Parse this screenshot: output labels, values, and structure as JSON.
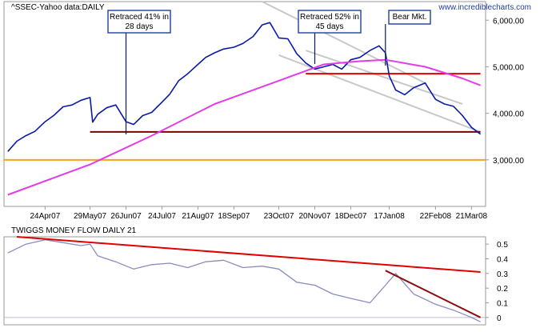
{
  "colors": {
    "price": "#0a1aa6",
    "ma": "#e23ce6",
    "support_dark": "#7a0000",
    "horizontal_red": "#e00000",
    "orange": "#f5a21a",
    "channel": "#c8c8c8",
    "mf_line": "#8a8cc0",
    "mf_trend_red": "#e00000",
    "mf_trend_dark": "#8a1010",
    "ann_border": "#1f3fa0"
  },
  "chart_data": [
    {
      "type": "line",
      "title": "^SSEC-Yahoo data:DAILY",
      "source_label": "www.incrediblecharts.com",
      "xlabel": "",
      "ylabel": "",
      "x_tick_labels": [
        "24Apr07",
        "29May07",
        "26Jun07",
        "24Jul07",
        "21Aug07",
        "18Sep07",
        "23Oct07",
        "20Nov07",
        "18Dec07",
        "17Jan08",
        "22Feb08",
        "21Mar08"
      ],
      "y_tick_labels": [
        "3,000.00",
        "4,000.00",
        "5,000.00",
        "6,000.00"
      ],
      "ylim": [
        2000,
        6400
      ],
      "grid": false,
      "series": [
        {
          "kind": "price",
          "x": [
            "2007-03-26",
            "2007-04-02",
            "2007-04-09",
            "2007-04-16",
            "2007-04-24",
            "2007-05-01",
            "2007-05-08",
            "2007-05-15",
            "2007-05-22",
            "2007-05-29",
            "2007-05-31",
            "2007-06-04",
            "2007-06-11",
            "2007-06-18",
            "2007-06-26",
            "2007-07-02",
            "2007-07-09",
            "2007-07-16",
            "2007-07-24",
            "2007-07-30",
            "2007-08-06",
            "2007-08-13",
            "2007-08-21",
            "2007-08-27",
            "2007-09-03",
            "2007-09-10",
            "2007-09-18",
            "2007-09-25",
            "2007-10-03",
            "2007-10-10",
            "2007-10-16",
            "2007-10-23",
            "2007-10-30",
            "2007-11-06",
            "2007-11-13",
            "2007-11-20",
            "2007-11-27",
            "2007-12-04",
            "2007-12-11",
            "2007-12-18",
            "2007-12-25",
            "2008-01-02",
            "2008-01-09",
            "2008-01-14",
            "2008-01-17",
            "2008-01-22",
            "2008-01-29",
            "2008-02-05",
            "2008-02-14",
            "2008-02-22",
            "2008-02-29",
            "2008-03-07",
            "2008-03-14",
            "2008-03-21",
            "2008-03-28"
          ],
          "values": [
            3180,
            3400,
            3520,
            3610,
            3820,
            3960,
            4140,
            4180,
            4280,
            4340,
            3810,
            3980,
            4120,
            4180,
            3820,
            3760,
            3950,
            4020,
            4240,
            4410,
            4700,
            4850,
            5050,
            5200,
            5300,
            5380,
            5420,
            5500,
            5650,
            5900,
            5950,
            5620,
            5600,
            5280,
            5080,
            4950,
            5000,
            5050,
            4950,
            5150,
            5200,
            5350,
            5450,
            5300,
            4800,
            4500,
            4400,
            4550,
            4650,
            4300,
            4200,
            4150,
            3950,
            3700,
            3550
          ]
        },
        {
          "kind": "moving-average",
          "x": [
            "2007-03-26",
            "2007-05-29",
            "2007-07-16",
            "2007-09-03",
            "2007-10-23",
            "2007-11-27",
            "2007-12-25",
            "2008-01-14",
            "2008-02-14",
            "2008-03-14",
            "2008-03-28"
          ],
          "values": [
            2250,
            2900,
            3520,
            4200,
            4700,
            5050,
            5120,
            5150,
            5000,
            4750,
            4600
          ]
        }
      ],
      "horizontal_lines": [
        {
          "name": "support",
          "value": 3600,
          "color_ref": "support_dark"
        },
        {
          "name": "resistance",
          "value": 4850,
          "color_ref": "horizontal_red"
        },
        {
          "name": "lower",
          "value": 3000,
          "color_ref": "orange"
        }
      ],
      "channel_lines": [
        {
          "from": [
            "2007-10-10",
            6400
          ],
          "to": [
            "2008-02-14",
            4650
          ]
        },
        {
          "from": [
            "2007-11-13",
            5350
          ],
          "to": [
            "2008-03-14",
            4200
          ]
        },
        {
          "from": [
            "2007-10-23",
            5250
          ],
          "to": [
            "2008-03-28",
            3600
          ]
        }
      ],
      "annotations": [
        {
          "lines": [
            "Retraced 41% in",
            "28 days"
          ],
          "anchor_date": "2007-06-26"
        },
        {
          "lines": [
            "Retraced 52% in",
            "45 days"
          ],
          "anchor_date": "2007-11-20"
        },
        {
          "lines": [
            "Bear Mkt."
          ],
          "anchor_date": "2008-01-14"
        }
      ]
    },
    {
      "type": "line",
      "title": "TWIGGS MONEY FLOW DAILY 21",
      "xlabel": "",
      "ylabel": "",
      "y_tick_labels": [
        "0.5",
        "0.4",
        "0.3",
        "0.2",
        "0.1",
        "0"
      ],
      "ylim": [
        -0.05,
        0.55
      ],
      "grid": false,
      "series": [
        {
          "kind": "twiggs-money-flow",
          "x": [
            "2007-03-26",
            "2007-04-09",
            "2007-04-24",
            "2007-05-08",
            "2007-05-22",
            "2007-05-29",
            "2007-06-04",
            "2007-06-18",
            "2007-07-02",
            "2007-07-16",
            "2007-07-30",
            "2007-08-13",
            "2007-08-27",
            "2007-09-10",
            "2007-09-25",
            "2007-10-10",
            "2007-10-23",
            "2007-11-06",
            "2007-11-20",
            "2007-12-04",
            "2007-12-18",
            "2008-01-02",
            "2008-01-14",
            "2008-01-22",
            "2008-02-05",
            "2008-02-22",
            "2008-03-07",
            "2008-03-21",
            "2008-03-28"
          ],
          "values": [
            0.44,
            0.5,
            0.53,
            0.51,
            0.49,
            0.5,
            0.42,
            0.38,
            0.33,
            0.36,
            0.37,
            0.34,
            0.38,
            0.39,
            0.34,
            0.35,
            0.33,
            0.24,
            0.22,
            0.16,
            0.13,
            0.1,
            0.22,
            0.3,
            0.16,
            0.09,
            0.05,
            0.0,
            -0.03
          ]
        }
      ],
      "trend_lines": [
        {
          "from": [
            "2007-04-02",
            0.55
          ],
          "to": [
            "2008-03-28",
            0.31
          ],
          "color_ref": "mf_trend_red"
        },
        {
          "from": [
            "2008-01-14",
            0.32
          ],
          "to": [
            "2008-03-28",
            0.0
          ],
          "color_ref": "mf_trend_dark"
        }
      ],
      "zero_line": 0
    }
  ]
}
